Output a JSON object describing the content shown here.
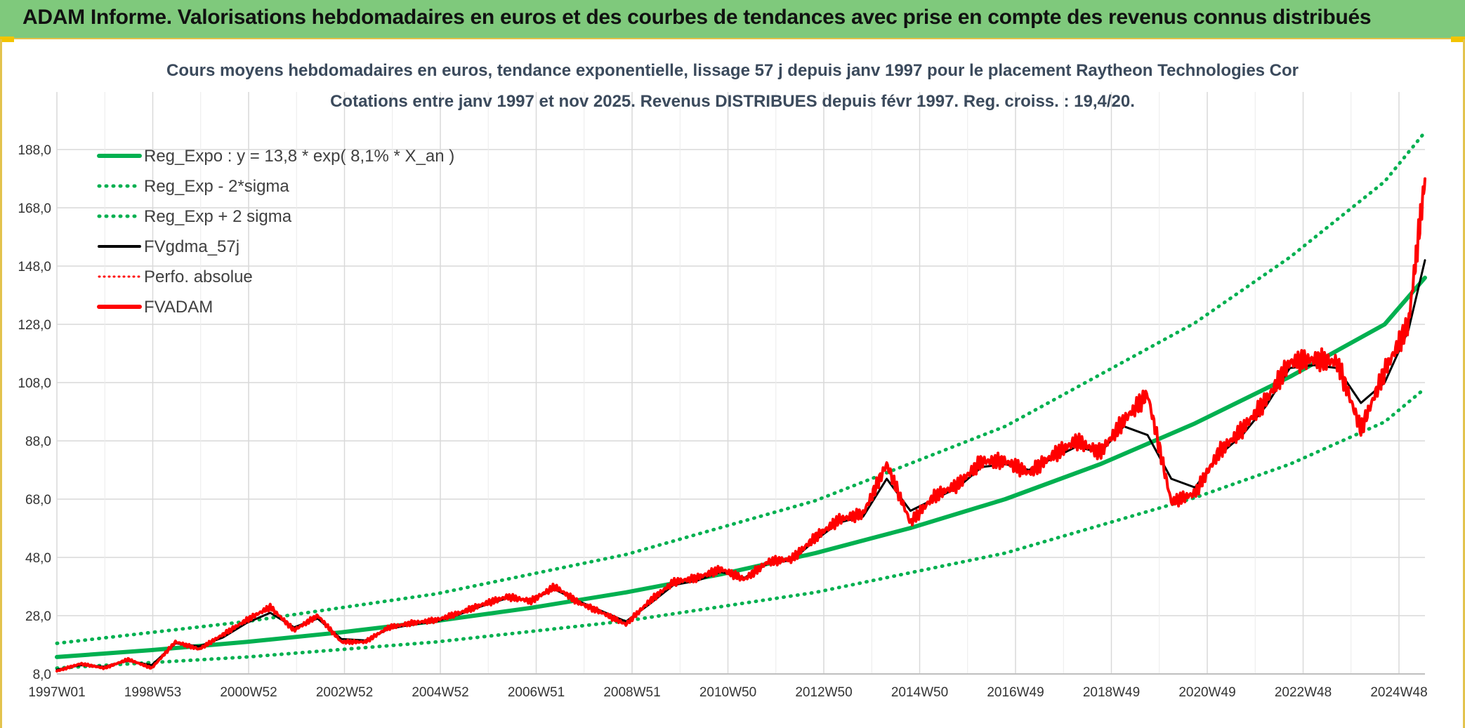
{
  "banner": {
    "title": "ADAM Informe. Valorisations hebdomadaires en euros et des courbes de tendances avec prise en compte des revenus connus distribués"
  },
  "colors": {
    "banner_bg": "#7fc97c",
    "trend": "#00b050",
    "smooth": "#000000",
    "price": "#ff0000",
    "grid": "#d9d9d9"
  },
  "chart_data": {
    "type": "line",
    "title": "Cours moyens hebdomadaires en euros, tendance exponentielle, lissage 57 j depuis janv 1997 pour le placement Raytheon Technologies Cor",
    "subtitle": "Cotations entre janv 1997 et nov 2025. Revenus DISTRIBUES depuis févr 1997. Reg. croiss. : 19,4/20.",
    "xlabel": "",
    "ylabel": "",
    "ylim": [
      8,
      200
    ],
    "y_ticks": [
      "8,0",
      "28,0",
      "48,0",
      "68,0",
      "88,0",
      "108,0",
      "128,0",
      "148,0",
      "168,0",
      "188,0"
    ],
    "x_ticks": [
      "1997W01",
      "1998W53",
      "2000W52",
      "2002W52",
      "2004W52",
      "2006W51",
      "2008W51",
      "2010W50",
      "2012W50",
      "2014W50",
      "2016W49",
      "2018W49",
      "2020W49",
      "2022W48",
      "2024W48"
    ],
    "xlim": [
      1997.0,
      2025.85
    ],
    "grid": true,
    "legend_position": "top-left",
    "legend": [
      {
        "name": "Reg_Expo : y = 13,8 * exp( 8,1% *  X_an )",
        "style": "solid-thick",
        "color": "#00b050"
      },
      {
        "name": "Reg_Exp - 2*sigma",
        "style": "dotted",
        "color": "#00b050"
      },
      {
        "name": "Reg_Exp + 2 sigma",
        "style": "dotted",
        "color": "#00b050"
      },
      {
        "name": "FVgdma_57j",
        "style": "solid",
        "color": "#000000"
      },
      {
        "name": "Perfo. absolue",
        "style": "dotted",
        "color": "#ff0000"
      },
      {
        "name": "FVADAM",
        "style": "solid-thick",
        "color": "#ff0000"
      }
    ],
    "series": [
      {
        "name": "Reg_Expo : y = 13,8 * exp( 8,1% *  X_an )",
        "x": [
          1997.0,
          1999.0,
          2001.0,
          2003.0,
          2005.0,
          2007.0,
          2009.0,
          2011.0,
          2013.0,
          2015.0,
          2017.0,
          2019.0,
          2021.0,
          2023.0,
          2025.0,
          2025.85
        ],
        "values": [
          13.8,
          16.2,
          19.0,
          22.3,
          26.2,
          30.7,
          36.0,
          42.2,
          49.5,
          58.1,
          68.0,
          80.0,
          94.0,
          110.0,
          128.0,
          144.0
        ]
      },
      {
        "name": "Reg_Exp - 2*sigma",
        "x": [
          1997.0,
          2001.0,
          2005.0,
          2009.0,
          2013.0,
          2017.0,
          2021.0,
          2023.0,
          2025.0,
          2025.85
        ],
        "values": [
          10.0,
          13.8,
          19.0,
          26.2,
          36.0,
          49.5,
          68.5,
          80.0,
          94.5,
          106.0
        ]
      },
      {
        "name": "Reg_Exp + 2 sigma",
        "x": [
          1997.0,
          2001.0,
          2005.0,
          2009.0,
          2013.0,
          2017.0,
          2021.0,
          2023.0,
          2025.0,
          2025.85
        ],
        "values": [
          18.5,
          26.0,
          35.5,
          49.0,
          67.5,
          93.0,
          128.5,
          151.0,
          177.0,
          194.0
        ]
      },
      {
        "name": "FVgdma_57j",
        "x": [
          1997.0,
          1997.5,
          1998.0,
          1998.5,
          1999.0,
          1999.5,
          2000.0,
          2000.5,
          2001.0,
          2001.5,
          2002.0,
          2002.5,
          2003.0,
          2003.5,
          2004.0,
          2004.5,
          2005.0,
          2005.5,
          2006.0,
          2006.5,
          2007.0,
          2007.5,
          2008.0,
          2008.5,
          2009.0,
          2009.5,
          2010.0,
          2010.5,
          2011.0,
          2011.5,
          2012.0,
          2012.5,
          2013.0,
          2013.5,
          2014.0,
          2014.5,
          2015.0,
          2015.5,
          2016.0,
          2016.5,
          2017.0,
          2017.5,
          2018.0,
          2018.5,
          2019.0,
          2019.5,
          2020.0,
          2020.5,
          2021.0,
          2021.5,
          2022.0,
          2022.5,
          2023.0,
          2023.5,
          2024.0,
          2024.5,
          2025.0,
          2025.5,
          2025.85
        ],
        "values": [
          9.5,
          11.0,
          10.5,
          12.5,
          11.0,
          18.5,
          17.5,
          20.5,
          25.5,
          29.0,
          24.0,
          27.0,
          20.0,
          19.5,
          23.5,
          25.0,
          26.0,
          28.5,
          31.5,
          34.0,
          33.5,
          37.0,
          33.0,
          29.5,
          26.0,
          32.0,
          38.5,
          40.0,
          43.0,
          41.0,
          46.0,
          47.0,
          54.0,
          60.0,
          62.0,
          75.0,
          64.0,
          68.0,
          72.0,
          79.0,
          80.0,
          78.0,
          82.0,
          86.0,
          84.0,
          93.0,
          90.0,
          75.0,
          72.0,
          83.0,
          90.0,
          100.0,
          113.0,
          114.0,
          113.0,
          101.0,
          108.0,
          126.0,
          150.0
        ]
      },
      {
        "name": "FVADAM",
        "x": [
          1997.0,
          1997.5,
          1998.0,
          1998.5,
          1999.0,
          1999.5,
          2000.0,
          2000.5,
          2001.0,
          2001.5,
          2002.0,
          2002.5,
          2003.0,
          2003.5,
          2004.0,
          2004.5,
          2005.0,
          2005.5,
          2006.0,
          2006.5,
          2007.0,
          2007.5,
          2008.0,
          2008.5,
          2009.0,
          2009.5,
          2010.0,
          2010.5,
          2011.0,
          2011.5,
          2012.0,
          2012.5,
          2013.0,
          2013.5,
          2014.0,
          2014.5,
          2015.0,
          2015.5,
          2016.0,
          2016.5,
          2017.0,
          2017.5,
          2018.0,
          2018.5,
          2019.0,
          2019.5,
          2020.0,
          2020.5,
          2021.0,
          2021.5,
          2022.0,
          2022.5,
          2023.0,
          2023.5,
          2024.0,
          2024.5,
          2025.0,
          2025.5,
          2025.85
        ],
        "values": [
          9.0,
          11.5,
          10.0,
          13.0,
          10.0,
          19.0,
          16.5,
          21.5,
          26.5,
          31.0,
          23.0,
          28.0,
          19.0,
          19.0,
          24.0,
          25.5,
          26.5,
          29.0,
          32.0,
          34.5,
          33.0,
          38.0,
          32.5,
          29.0,
          25.0,
          33.0,
          39.5,
          41.0,
          44.0,
          40.5,
          46.5,
          47.5,
          55.0,
          61.0,
          63.0,
          80.0,
          60.0,
          69.0,
          73.0,
          81.0,
          81.0,
          77.0,
          83.0,
          88.0,
          84.0,
          95.0,
          104.0,
          67.0,
          70.0,
          84.0,
          92.0,
          102.0,
          115.0,
          116.0,
          115.0,
          92.0,
          112.0,
          128.0,
          178.0
        ]
      }
    ]
  }
}
